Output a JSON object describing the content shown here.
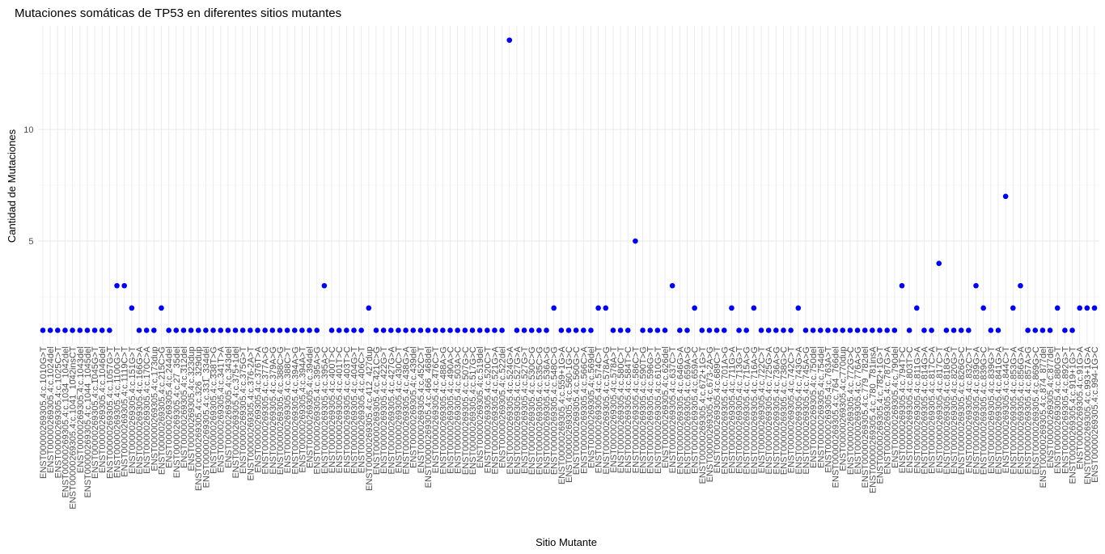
{
  "chart_data": {
    "type": "scatter",
    "title": "Mutaciones somáticas de TP53 en diferentes sitios mutantes",
    "x_label": "Sitio Mutante",
    "y_label": "Cantidad de Mutaciones",
    "color": "#0000ff",
    "grid": true,
    "ylim": [
      0.35,
      14.65
    ],
    "yticks": [
      5,
      10
    ],
    "y_minor_grid": [
      2.5,
      7.5,
      12.5
    ],
    "categories": [
      "ENST00000269305.4:c.1010G>T",
      "ENST00000269305.4:c.1024del",
      "ENST00000269305.4:c.1025C>T",
      "ENST00000269305.4:c.1034_1042del",
      "ENST00000269305.4:c.1041_1042insCT",
      "ENST00000269305.4:c.1043del",
      "ENST00000269305.4:c.1044_1045del",
      "ENST00000269305.4:c.1045G>T",
      "ENST00000269305.4:c.1046del",
      "ENST00000269305.4:c.1057G>T",
      "ENST00000269305.4:c.1100G>T",
      "ENST00000269305.4:c.1119C>T",
      "ENST00000269305.4:c.151G>T",
      "ENST00000269305.4:c.166G>A",
      "ENST00000269305.4:c.170C>A",
      "ENST00000269305.4:c.173dup",
      "ENST00000269305.4:c.215C>G",
      "ENST00000269305.4:c.244del",
      "ENST00000269305.4:c.27_35del",
      "ENST00000269305.4:c.312del",
      "ENST00000269305.4:c.323dup",
      "ENST00000269305.4:c.326_329dup",
      "ENST00000269305.4:c.331_334del",
      "ENST00000269305.4:c.338T>G",
      "ENST00000269305.4:c.341T>A",
      "ENST00000269305.4:c.343del",
      "ENST00000269305.4:c.375+1del",
      "ENST00000269305.4:c.375G>T",
      "ENST00000269305.4:c.376-2A>T",
      "ENST00000269305.4:c.376T>A",
      "ENST00000269305.4:c.377A>G",
      "ENST00000269305.4:c.379A>G",
      "ENST00000269305.4:c.388C>G",
      "ENST00000269305.4:c.388C>T",
      "ENST00000269305.4:c.394A>G",
      "ENST00000269305.4:c.394A>T",
      "ENST00000269305.4:c.394del",
      "ENST00000269305.4:c.395A>G",
      "ENST00000269305.4:c.395A>C",
      "ENST00000269305.4:c.400T>C",
      "ENST00000269305.4:c.401T>C",
      "ENST00000269305.4:c.403T>C",
      "ENST00000269305.4:c.404G>T",
      "ENST00000269305.4:c.406C>T",
      "ENST00000269305.4:c.412_427dup",
      "ENST00000269305.4:c.421C>G",
      "ENST00000269305.4:c.422G>T",
      "ENST00000269305.4:c.427G>A",
      "ENST00000269305.4:c.430C>T",
      "ENST00000269305.4:c.438G>A",
      "ENST00000269305.4:c.439del",
      "ENST00000269305.4:c.452C>T",
      "ENST00000269305.4:c.466_468del",
      "ENST00000269305.4:c.476C>T",
      "ENST00000269305.4:c.488A>G",
      "ENST00000269305.4:c.490A>C",
      "ENST00000269305.4:c.503A>C",
      "ENST00000269305.4:c.507G>C",
      "ENST00000269305.4:c.517G>C",
      "ENST00000269305.4:c.519del",
      "ENST00000269305.4:c.520C>T",
      "ENST00000269305.4:c.521G>A",
      "ENST00000269305.4:c.522del",
      "ENST00000269305.4:c.524G>A",
      "ENST00000269305.4:c.527G>A",
      "ENST00000269305.4:c.527G>T",
      "ENST00000269305.4:c.530C>G",
      "ENST00000269305.4:c.535C>G",
      "ENST00000269305.4:c.536A>G",
      "ENST00000269305.4:c.548C>G",
      "ENST00000269305.4:c.559+1G>A",
      "ENST00000269305.4:c.560-1G>C",
      "ENST00000269305.4:c.560G>C",
      "ENST00000269305.4:c.566C>A",
      "ENST00000269305.4:c.569del",
      "ENST00000269305.4:c.574C>T",
      "ENST00000269305.4:c.578A>G",
      "ENST00000269305.4:c.578A>T",
      "ENST00000269305.4:c.580C>T",
      "ENST00000269305.4:c.584T>C",
      "ENST00000269305.4:c.586C>T",
      "ENST00000269305.4:c.590T>G",
      "ENST00000269305.4:c.596G>T",
      "ENST00000269305.4:c.610G>T",
      "ENST00000269305.4:c.626del",
      "ENST00000269305.4:c.637C>T",
      "ENST00000269305.4:c.646G>A",
      "ENST00000269305.4:c.659A>G",
      "ENST00000269305.4:c.659A>C",
      "ENST00000269305.4:c.672+1G>T",
      "ENST00000269305.4:c.673-2A>G",
      "ENST00000269305.4:c.689C>T",
      "ENST00000269305.4:c.701A>G",
      "ENST00000269305.4:c.711G>A",
      "ENST00000269305.4:c.713G>T",
      "ENST00000269305.4:c.715A>G",
      "ENST00000269305.4:c.716A>G",
      "ENST00000269305.4:c.722C>T",
      "ENST00000269305.4:c.725G>A",
      "ENST00000269305.4:c.736A>G",
      "ENST00000269305.4:c.738G>C",
      "ENST00000269305.4:c.742C>T",
      "ENST00000269305.4:c.743G>A",
      "ENST00000269305.4:c.745A>G",
      "ENST00000269305.4:c.750del",
      "ENST00000269305.4:c.754del",
      "ENST00000269305.4:c.763A>T",
      "ENST00000269305.4:c.764_766del",
      "ENST00000269305.4:c.770dup",
      "ENST00000269305.4:c.772G>C",
      "ENST00000269305.4:c.776A>G",
      "ENST00000269305.4:c.779_782del",
      "ENST00000269305.4:c.780_781insA",
      "ENST00000269305.4:c.782+1G>T",
      "ENST00000269305.4:c.787G>A",
      "ENST00000269305.4:c.790del",
      "ENST00000269305.4:c.794T>C",
      "ENST00000269305.4:c.803T>C",
      "ENST00000269305.4:c.811G>A",
      "ENST00000269305.4:c.814G>A",
      "ENST00000269305.4:c.817C>A",
      "ENST00000269305.4:c.817C>T",
      "ENST00000269305.4:c.818G>A",
      "ENST00000269305.4:c.820G>T",
      "ENST00000269305.4:c.826G>C",
      "ENST00000269305.4:c.832C>T",
      "ENST00000269305.4:c.839G>A",
      "ENST00000269305.4:c.839G>C",
      "ENST00000269305.4:c.839G>T",
      "ENST00000269305.4:c.841G>A",
      "ENST00000269305.4:c.844C>T",
      "ENST00000269305.4:c.853G>A",
      "ENST00000269305.4:c.856G>A",
      "ENST00000269305.4:c.857A>G",
      "ENST00000269305.4:c.869G>C",
      "ENST00000269305.4:c.874_877del",
      "ENST00000269305.4:c.877del",
      "ENST00000269305.4:c.880G>T",
      "ENST00000269305.4:c.892G>T",
      "ENST00000269305.4:c.919+1G>T",
      "ENST00000269305.4:c.91G>A",
      "ENST00000269305.4:c.993+1G>A",
      "ENST00000269305.4:c.994-1G>C"
    ],
    "values": [
      1,
      1,
      1,
      1,
      1,
      1,
      1,
      1,
      1,
      1,
      3,
      3,
      2,
      1,
      1,
      1,
      2,
      1,
      1,
      1,
      1,
      1,
      1,
      1,
      1,
      1,
      1,
      1,
      1,
      1,
      1,
      1,
      1,
      1,
      1,
      1,
      1,
      1,
      3,
      1,
      1,
      1,
      1,
      1,
      2,
      1,
      1,
      1,
      1,
      1,
      1,
      1,
      1,
      1,
      1,
      1,
      1,
      1,
      1,
      1,
      1,
      1,
      1,
      14,
      1,
      1,
      1,
      1,
      1,
      2,
      1,
      1,
      1,
      1,
      1,
      2,
      2,
      1,
      1,
      1,
      5,
      1,
      1,
      1,
      1,
      3,
      1,
      1,
      2,
      1,
      1,
      1,
      1,
      2,
      1,
      1,
      2,
      1,
      1,
      1,
      1,
      1,
      2,
      1,
      1,
      1,
      1,
      1,
      1,
      1,
      1,
      1,
      1,
      1,
      1,
      1,
      3,
      1,
      2,
      1,
      1,
      4,
      1,
      1,
      1,
      1,
      3,
      2,
      1,
      1,
      7,
      2,
      3,
      1,
      1,
      1,
      1,
      2,
      1,
      1,
      2,
      2,
      2
    ]
  }
}
